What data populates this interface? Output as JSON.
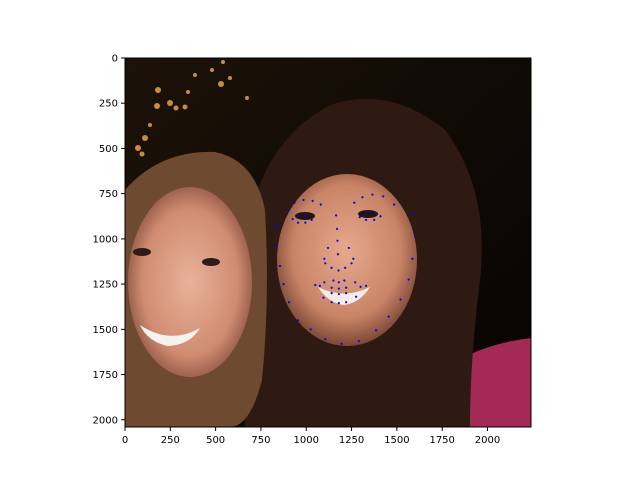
{
  "chart_data": {
    "type": "scatter",
    "title": "",
    "xlabel": "",
    "ylabel": "",
    "xlim": [
      0,
      2240
    ],
    "ylim": [
      2040,
      0
    ],
    "y_inverted": true,
    "grid": false,
    "background_image": "photo-two-smiling-women",
    "xticks": [
      0,
      250,
      500,
      750,
      1000,
      1250,
      1500,
      1750,
      2000
    ],
    "yticks": [
      0,
      250,
      500,
      750,
      1000,
      1250,
      1500,
      1750,
      2000
    ],
    "marker_color": "#0000ff",
    "series": [
      {
        "points": [
          [
            838,
            924
          ],
          [
            836,
            1040
          ],
          [
            855,
            1150
          ],
          [
            875,
            1250
          ],
          [
            905,
            1350
          ],
          [
            955,
            1450
          ],
          [
            1025,
            1500
          ],
          [
            1105,
            1555
          ],
          [
            1195,
            1580
          ],
          [
            1290,
            1565
          ],
          [
            1385,
            1505
          ],
          [
            1455,
            1430
          ],
          [
            1520,
            1335
          ],
          [
            1565,
            1225
          ],
          [
            1585,
            1110
          ],
          [
            1600,
            985
          ],
          [
            1595,
            860
          ],
          [
            900,
            840
          ],
          [
            935,
            800
          ],
          [
            985,
            785
          ],
          [
            1035,
            790
          ],
          [
            1080,
            810
          ],
          [
            1265,
            800
          ],
          [
            1310,
            770
          ],
          [
            1365,
            755
          ],
          [
            1425,
            765
          ],
          [
            1485,
            810
          ],
          [
            1165,
            870
          ],
          [
            1170,
            945
          ],
          [
            1172,
            1010
          ],
          [
            1175,
            1085
          ],
          [
            1105,
            1135
          ],
          [
            1140,
            1160
          ],
          [
            1178,
            1175
          ],
          [
            1215,
            1160
          ],
          [
            1250,
            1135
          ],
          [
            925,
            890
          ],
          [
            955,
            870
          ],
          [
            995,
            870
          ],
          [
            1030,
            895
          ],
          [
            995,
            910
          ],
          [
            955,
            910
          ],
          [
            1295,
            880
          ],
          [
            1330,
            855
          ],
          [
            1375,
            855
          ],
          [
            1410,
            875
          ],
          [
            1375,
            895
          ],
          [
            1330,
            895
          ],
          [
            1050,
            1255
          ],
          [
            1100,
            1240
          ],
          [
            1150,
            1230
          ],
          [
            1180,
            1240
          ],
          [
            1210,
            1230
          ],
          [
            1270,
            1240
          ],
          [
            1330,
            1260
          ],
          [
            1275,
            1320
          ],
          [
            1220,
            1350
          ],
          [
            1180,
            1355
          ],
          [
            1140,
            1350
          ],
          [
            1095,
            1325
          ],
          [
            1075,
            1260
          ],
          [
            1140,
            1270
          ],
          [
            1180,
            1275
          ],
          [
            1220,
            1270
          ],
          [
            1300,
            1265
          ],
          [
            1220,
            1300
          ],
          [
            1180,
            1305
          ],
          [
            1140,
            1300
          ],
          [
            1100,
            1110
          ],
          [
            1260,
            1110
          ],
          [
            1235,
            1050
          ],
          [
            1120,
            1050
          ]
        ]
      }
    ]
  }
}
